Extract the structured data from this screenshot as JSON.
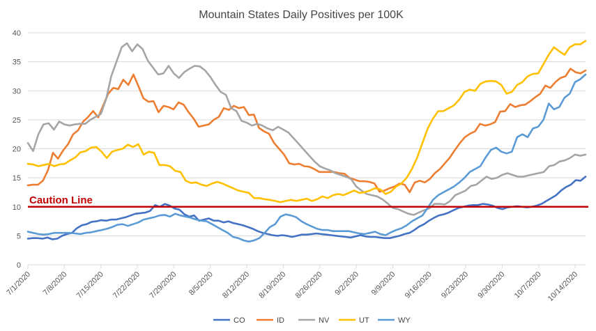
{
  "chart_data": {
    "type": "line",
    "title": "Mountain States Daily Positives per 100K",
    "xlabel": "",
    "ylabel": "",
    "ylim": [
      0,
      40
    ],
    "y_ticks": [
      0,
      5,
      10,
      15,
      20,
      25,
      30,
      35,
      40
    ],
    "x_tick_labels": [
      "7/1/2020",
      "7/8/2020",
      "7/15/2020",
      "7/22/2020",
      "7/29/2020",
      "8/5/2020",
      "8/12/2020",
      "8/19/2020",
      "8/26/2020",
      "9/2/2020",
      "9/9/2020",
      "9/16/2020",
      "9/23/2020",
      "9/30/2020",
      "10/7/2020",
      "10/14/2020"
    ],
    "x_start": "7/1/2020",
    "x_end": "10/16/2020",
    "grid": true,
    "legend_position": "bottom",
    "caution_line": {
      "label": "Caution Line",
      "value": 10,
      "color": "#c00000"
    },
    "series": [
      {
        "name": "CO",
        "color": "#4472c4",
        "values": [
          4.5,
          4.6,
          4.6,
          4.5,
          4.7,
          4.4,
          4.5,
          5.0,
          5.3,
          5.5,
          6.3,
          6.8,
          7.0,
          7.4,
          7.5,
          7.7,
          7.6,
          7.8,
          7.8,
          8.0,
          8.2,
          8.5,
          8.8,
          8.9,
          9.0,
          9.3,
          10.3,
          10.0,
          10.5,
          10.2,
          9.7,
          9.5,
          8.7,
          8.3,
          8.5,
          7.6,
          7.8,
          8.0,
          7.6,
          7.6,
          7.3,
          7.5,
          7.2,
          7.0,
          6.8,
          6.5,
          6.2,
          5.8,
          5.5,
          5.3,
          5.1,
          5.0,
          5.1,
          5.0,
          4.8,
          5.0,
          5.2,
          5.2,
          5.3,
          5.4,
          5.3,
          5.2,
          5.1,
          5.0,
          4.9,
          4.8,
          4.7,
          4.9,
          5.1,
          4.9,
          4.8,
          4.8,
          4.7,
          4.6,
          4.6,
          4.8,
          5.0,
          5.3,
          5.5,
          6.0,
          6.6,
          7.0,
          7.6,
          8.1,
          8.5,
          8.7,
          9.0,
          9.4,
          9.8,
          10.0,
          10.2,
          10.3,
          10.3,
          10.5,
          10.4,
          10.2,
          9.8,
          9.6,
          9.9,
          10.0,
          10.1,
          10.0,
          9.9,
          10.0,
          10.2,
          10.5,
          11.0,
          11.5,
          12.0,
          12.8,
          13.4,
          13.8,
          14.6,
          14.5,
          15.2
        ]
      },
      {
        "name": "ID",
        "color": "#ed7d31",
        "values": [
          13.7,
          13.8,
          13.8,
          14.5,
          16.3,
          19.3,
          18.3,
          19.7,
          20.8,
          22.5,
          23.2,
          24.7,
          25.5,
          26.5,
          25.4,
          27.5,
          29.5,
          30.5,
          30.3,
          31.9,
          31.0,
          32.8,
          30.8,
          28.7,
          28.1,
          28.2,
          26.3,
          27.4,
          27.2,
          26.8,
          28.0,
          27.6,
          26.3,
          25.2,
          23.8,
          24.0,
          24.2,
          25.0,
          25.5,
          27.0,
          26.7,
          27.4,
          27.0,
          27.2,
          25.8,
          25.9,
          23.6,
          23.0,
          22.6,
          21.0,
          20.0,
          19.0,
          17.5,
          17.3,
          17.4,
          17.0,
          16.9,
          16.5,
          16.0,
          16.0,
          16.0,
          16.0,
          15.8,
          15.7,
          15.0,
          14.7,
          14.4,
          14.4,
          14.3,
          14.0,
          12.6,
          12.8,
          13.2,
          13.5,
          14.0,
          13.8,
          12.5,
          14.2,
          14.5,
          14.2,
          14.8,
          15.8,
          16.5,
          17.5,
          18.5,
          19.8,
          21.0,
          22.0,
          22.6,
          23.0,
          24.3,
          24.0,
          24.2,
          24.6,
          26.4,
          26.5,
          27.7,
          27.2,
          27.5,
          27.6,
          28.2,
          28.9,
          29.5,
          30.9,
          30.5,
          31.5,
          32.2,
          32.5,
          33.8,
          33.2,
          33.0,
          33.5
        ]
      },
      {
        "name": "NV",
        "color": "#a5a5a5",
        "values": [
          21.0,
          19.6,
          22.5,
          24.2,
          24.4,
          23.3,
          24.7,
          24.2,
          24.0,
          24.2,
          24.3,
          24.3,
          25.0,
          25.5,
          26.0,
          28.5,
          32.5,
          35.0,
          37.5,
          38.2,
          36.8,
          38.0,
          37.2,
          35.2,
          34.0,
          32.8,
          33.0,
          34.3,
          33.0,
          32.2,
          33.2,
          33.8,
          34.3,
          34.2,
          33.5,
          32.4,
          31.0,
          29.8,
          29.3,
          27.0,
          26.5,
          24.8,
          24.5,
          24.0,
          24.3,
          24.0,
          23.5,
          23.2,
          23.8,
          23.3,
          22.8,
          21.8,
          20.8,
          19.8,
          18.8,
          17.8,
          17.0,
          16.6,
          16.3,
          15.8,
          15.5,
          15.2,
          14.8,
          13.5,
          12.8,
          12.2,
          12.0,
          11.8,
          11.3,
          10.6,
          9.8,
          9.6,
          9.2,
          8.8,
          8.6,
          9.0,
          9.4,
          9.7,
          10.5,
          10.5,
          10.4,
          11.0,
          12.0,
          12.4,
          12.8,
          13.6,
          13.8,
          14.5,
          15.2,
          14.8,
          15.0,
          15.5,
          15.8,
          15.5,
          15.2,
          15.2,
          15.4,
          15.6,
          15.8,
          16.0,
          17.0,
          17.2,
          17.8,
          18.0,
          18.4,
          19.0,
          18.8,
          19.0
        ]
      },
      {
        "name": "UT",
        "color": "#ffc000",
        "values": [
          17.4,
          17.3,
          17.0,
          17.2,
          17.4,
          17.0,
          17.3,
          17.4,
          18.0,
          18.5,
          19.4,
          19.6,
          20.2,
          20.3,
          19.5,
          18.4,
          19.5,
          19.8,
          20.0,
          20.7,
          20.3,
          20.8,
          19.0,
          19.5,
          19.3,
          17.2,
          17.2,
          17.0,
          16.2,
          16.0,
          14.5,
          14.1,
          14.2,
          13.8,
          13.6,
          14.0,
          14.3,
          14.0,
          13.6,
          13.2,
          12.8,
          12.6,
          12.4,
          11.5,
          11.5,
          11.3,
          11.2,
          11.0,
          10.8,
          11.0,
          11.2,
          11.0,
          11.2,
          11.4,
          11.0,
          11.3,
          11.8,
          11.5,
          12.0,
          12.2,
          12.0,
          12.4,
          12.8,
          12.4,
          12.5,
          12.8,
          13.2,
          13.0,
          12.2,
          12.6,
          13.5,
          14.0,
          15.0,
          16.5,
          18.5,
          21.0,
          23.5,
          25.2,
          26.5,
          26.5,
          27.0,
          27.5,
          28.5,
          29.8,
          30.2,
          30.0,
          31.2,
          31.6,
          31.7,
          31.6,
          31.0,
          29.5,
          29.8,
          31.0,
          31.5,
          32.5,
          32.9,
          33.0,
          34.6,
          36.2,
          37.5,
          36.8,
          36.2,
          37.5,
          38.0,
          38.0,
          38.6
        ]
      },
      {
        "name": "WY",
        "color": "#5b9bd5",
        "values": [
          5.7,
          5.5,
          5.3,
          5.2,
          5.3,
          5.5,
          5.5,
          5.5,
          5.5,
          5.4,
          5.3,
          5.5,
          5.6,
          5.8,
          6.0,
          6.2,
          6.5,
          6.9,
          7.0,
          6.7,
          7.0,
          7.3,
          7.8,
          8.0,
          8.2,
          8.5,
          8.6,
          8.3,
          8.8,
          8.5,
          8.3,
          8.1,
          7.8,
          7.6,
          7.5,
          7.0,
          6.5,
          6.0,
          5.5,
          4.8,
          4.6,
          4.2,
          4.0,
          4.2,
          4.6,
          5.5,
          6.5,
          7.0,
          8.3,
          8.7,
          8.5,
          8.2,
          7.5,
          7.0,
          6.6,
          6.2,
          6.0,
          6.0,
          5.8,
          5.8,
          5.8,
          5.8,
          5.6,
          5.4,
          5.3,
          5.5,
          5.7,
          5.3,
          5.1,
          5.6,
          6.0,
          6.3,
          6.8,
          7.5,
          8.0,
          8.5,
          9.8,
          11.2,
          12.0,
          12.5,
          13.0,
          13.5,
          14.2,
          15.0,
          16.0,
          16.5,
          17.0,
          18.5,
          19.8,
          20.2,
          19.5,
          19.2,
          19.5,
          22.0,
          22.5,
          22.0,
          23.5,
          23.8,
          25.0,
          27.8,
          26.8,
          27.2,
          28.8,
          29.5,
          31.5,
          32.0,
          32.8
        ]
      }
    ]
  }
}
